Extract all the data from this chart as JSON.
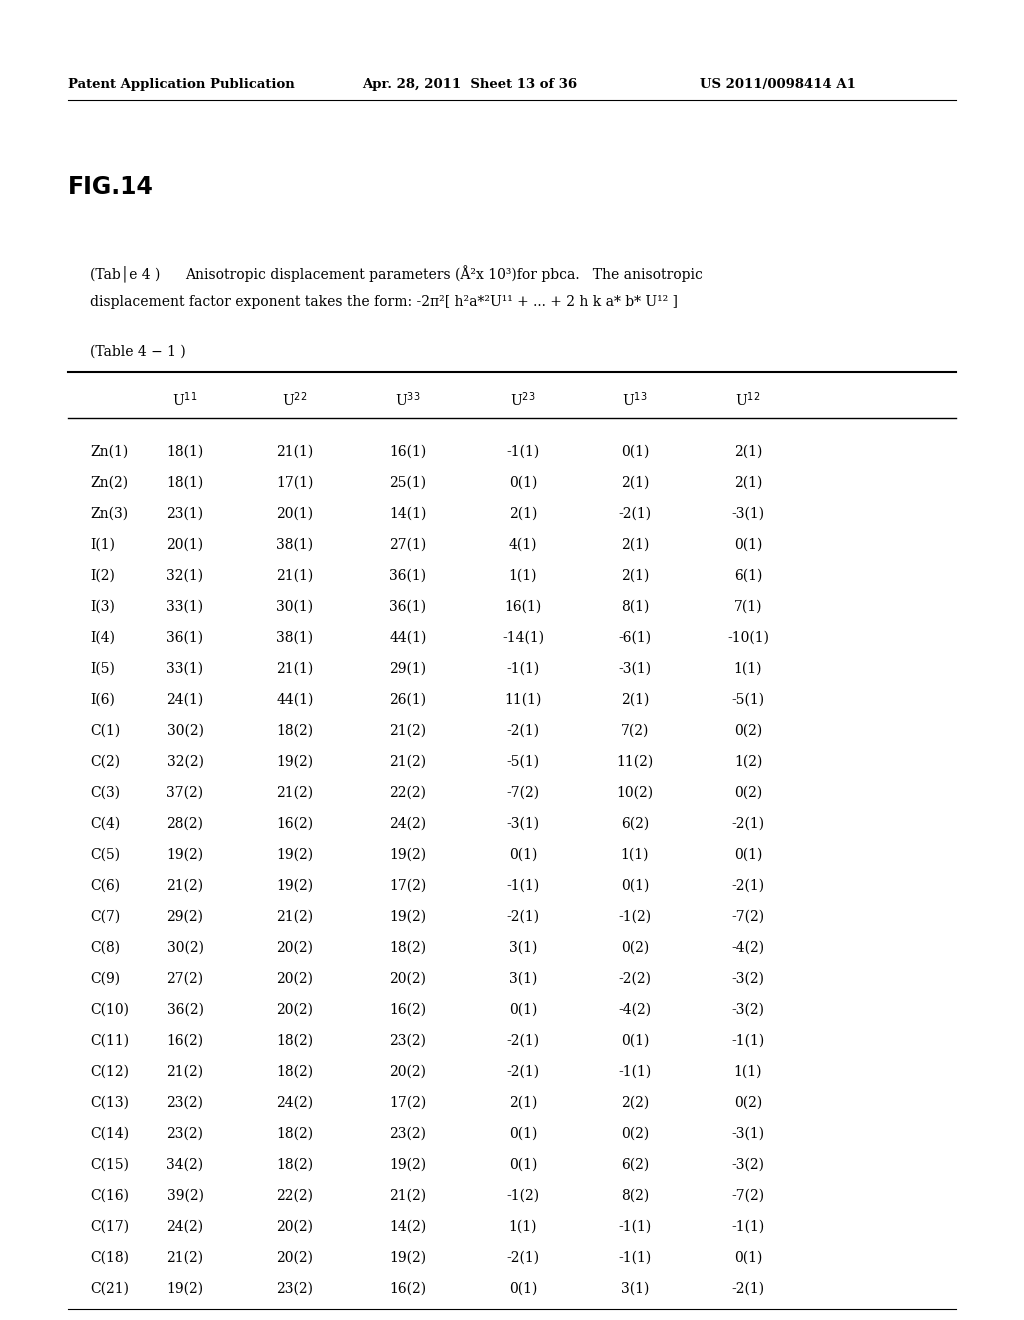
{
  "header_left": "Patent Application Publication",
  "header_center": "Apr. 28, 2011  Sheet 13 of 36",
  "header_right": "US 2011/0098414 A1",
  "fig_label": "FIG.14",
  "col_headers": [
    "",
    "U$^{11}$",
    "U$^{22}$",
    "U$^{33}$",
    "U$^{23}$",
    "U$^{13}$",
    "U$^{12}$"
  ],
  "rows": [
    [
      "Zn(1)",
      "18(1)",
      "21(1)",
      "16(1)",
      "-1(1)",
      "0(1)",
      "2(1)"
    ],
    [
      "Zn(2)",
      "18(1)",
      "17(1)",
      "25(1)",
      "0(1)",
      "2(1)",
      "2(1)"
    ],
    [
      "Zn(3)",
      "23(1)",
      "20(1)",
      "14(1)",
      "2(1)",
      "-2(1)",
      "-3(1)"
    ],
    [
      "I(1)",
      "20(1)",
      "38(1)",
      "27(1)",
      "4(1)",
      "2(1)",
      "0(1)"
    ],
    [
      "I(2)",
      "32(1)",
      "21(1)",
      "36(1)",
      "1(1)",
      "2(1)",
      "6(1)"
    ],
    [
      "I(3)",
      "33(1)",
      "30(1)",
      "36(1)",
      "16(1)",
      "8(1)",
      "7(1)"
    ],
    [
      "I(4)",
      "36(1)",
      "38(1)",
      "44(1)",
      "-14(1)",
      "-6(1)",
      "-10(1)"
    ],
    [
      "I(5)",
      "33(1)",
      "21(1)",
      "29(1)",
      "-1(1)",
      "-3(1)",
      "1(1)"
    ],
    [
      "I(6)",
      "24(1)",
      "44(1)",
      "26(1)",
      "11(1)",
      "2(1)",
      "-5(1)"
    ],
    [
      "C(1)",
      "30(2)",
      "18(2)",
      "21(2)",
      "-2(1)",
      "7(2)",
      "0(2)"
    ],
    [
      "C(2)",
      "32(2)",
      "19(2)",
      "21(2)",
      "-5(1)",
      "11(2)",
      "1(2)"
    ],
    [
      "C(3)",
      "37(2)",
      "21(2)",
      "22(2)",
      "-7(2)",
      "10(2)",
      "0(2)"
    ],
    [
      "C(4)",
      "28(2)",
      "16(2)",
      "24(2)",
      "-3(1)",
      "6(2)",
      "-2(1)"
    ],
    [
      "C(5)",
      "19(2)",
      "19(2)",
      "19(2)",
      "0(1)",
      "1(1)",
      "0(1)"
    ],
    [
      "C(6)",
      "21(2)",
      "19(2)",
      "17(2)",
      "-1(1)",
      "0(1)",
      "-2(1)"
    ],
    [
      "C(7)",
      "29(2)",
      "21(2)",
      "19(2)",
      "-2(1)",
      "-1(2)",
      "-7(2)"
    ],
    [
      "C(8)",
      "30(2)",
      "20(2)",
      "18(2)",
      "3(1)",
      "0(2)",
      "-4(2)"
    ],
    [
      "C(9)",
      "27(2)",
      "20(2)",
      "20(2)",
      "3(1)",
      "-2(2)",
      "-3(2)"
    ],
    [
      "C(10)",
      "36(2)",
      "20(2)",
      "16(2)",
      "0(1)",
      "-4(2)",
      "-3(2)"
    ],
    [
      "C(11)",
      "16(2)",
      "18(2)",
      "23(2)",
      "-2(1)",
      "0(1)",
      "-1(1)"
    ],
    [
      "C(12)",
      "21(2)",
      "18(2)",
      "20(2)",
      "-2(1)",
      "-1(1)",
      "1(1)"
    ],
    [
      "C(13)",
      "23(2)",
      "24(2)",
      "17(2)",
      "2(1)",
      "2(2)",
      "0(2)"
    ],
    [
      "C(14)",
      "23(2)",
      "18(2)",
      "23(2)",
      "0(1)",
      "0(2)",
      "-3(1)"
    ],
    [
      "C(15)",
      "34(2)",
      "18(2)",
      "19(2)",
      "0(1)",
      "6(2)",
      "-3(2)"
    ],
    [
      "C(16)",
      "39(2)",
      "22(2)",
      "21(2)",
      "-1(2)",
      "8(2)",
      "-7(2)"
    ],
    [
      "C(17)",
      "24(2)",
      "20(2)",
      "14(2)",
      "1(1)",
      "-1(1)",
      "-1(1)"
    ],
    [
      "C(18)",
      "21(2)",
      "20(2)",
      "19(2)",
      "-2(1)",
      "-1(1)",
      "0(1)"
    ],
    [
      "C(21)",
      "19(2)",
      "23(2)",
      "16(2)",
      "0(1)",
      "3(1)",
      "-2(1)"
    ]
  ],
  "bg_color": "#ffffff",
  "text_color": "#000000"
}
